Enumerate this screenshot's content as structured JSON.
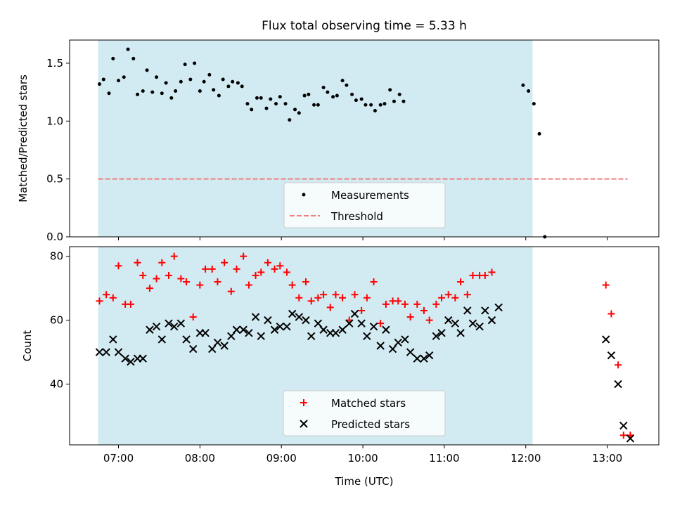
{
  "chart_data": [
    {
      "type": "scatter",
      "title": "Flux total observing time = 5.33 h",
      "ylabel": "Matched/Predicted stars",
      "xlim": [
        "06:24",
        "13:38"
      ],
      "ylim": [
        0,
        1.7
      ],
      "yticks": [
        {
          "value": 0.0,
          "label": "0.0"
        },
        {
          "value": 0.5,
          "label": "0.5"
        },
        {
          "value": 1.0,
          "label": "1.0"
        },
        {
          "value": 1.5,
          "label": "1.5"
        }
      ],
      "shaded_interval": [
        "06:45",
        "12:05"
      ],
      "shaded_color": "#add8e6",
      "threshold": {
        "name": "Threshold",
        "value": 0.5,
        "x_range": [
          "06:45",
          "13:15"
        ],
        "color": "#f08080"
      },
      "series": [
        {
          "name": "Measurements",
          "color": "#000000",
          "points": [
            [
              "06:46",
              1.32
            ],
            [
              "06:49",
              1.36
            ],
            [
              "06:53",
              1.24
            ],
            [
              "06:56",
              1.54
            ],
            [
              "07:00",
              1.35
            ],
            [
              "07:04",
              1.38
            ],
            [
              "07:07",
              1.62
            ],
            [
              "07:11",
              1.54
            ],
            [
              "07:14",
              1.23
            ],
            [
              "07:18",
              1.26
            ],
            [
              "07:21",
              1.44
            ],
            [
              "07:25",
              1.25
            ],
            [
              "07:28",
              1.38
            ],
            [
              "07:32",
              1.24
            ],
            [
              "07:35",
              1.33
            ],
            [
              "07:39",
              1.2
            ],
            [
              "07:42",
              1.26
            ],
            [
              "07:46",
              1.34
            ],
            [
              "07:49",
              1.49
            ],
            [
              "07:53",
              1.36
            ],
            [
              "07:56",
              1.5
            ],
            [
              "08:00",
              1.26
            ],
            [
              "08:03",
              1.34
            ],
            [
              "08:07",
              1.4
            ],
            [
              "08:10",
              1.27
            ],
            [
              "08:14",
              1.22
            ],
            [
              "08:17",
              1.36
            ],
            [
              "08:21",
              1.3
            ],
            [
              "08:24",
              1.34
            ],
            [
              "08:28",
              1.33
            ],
            [
              "08:31",
              1.3
            ],
            [
              "08:35",
              1.15
            ],
            [
              "08:38",
              1.1
            ],
            [
              "08:42",
              1.2
            ],
            [
              "08:45",
              1.2
            ],
            [
              "08:49",
              1.11
            ],
            [
              "08:52",
              1.19
            ],
            [
              "08:56",
              1.15
            ],
            [
              "08:59",
              1.21
            ],
            [
              "09:03",
              1.15
            ],
            [
              "09:06",
              1.01
            ],
            [
              "09:10",
              1.1
            ],
            [
              "09:13",
              1.07
            ],
            [
              "09:17",
              1.22
            ],
            [
              "09:20",
              1.23
            ],
            [
              "09:24",
              1.14
            ],
            [
              "09:27",
              1.14
            ],
            [
              "09:31",
              1.29
            ],
            [
              "09:34",
              1.25
            ],
            [
              "09:38",
              1.21
            ],
            [
              "09:41",
              1.22
            ],
            [
              "09:45",
              1.35
            ],
            [
              "09:48",
              1.31
            ],
            [
              "09:52",
              1.23
            ],
            [
              "09:55",
              1.18
            ],
            [
              "09:59",
              1.19
            ],
            [
              "10:02",
              1.14
            ],
            [
              "10:06",
              1.14
            ],
            [
              "10:09",
              1.09
            ],
            [
              "10:13",
              1.14
            ],
            [
              "10:16",
              1.15
            ],
            [
              "10:20",
              1.27
            ],
            [
              "10:23",
              1.17
            ],
            [
              "10:27",
              1.23
            ],
            [
              "10:30",
              1.17
            ],
            [
              "11:58",
              1.31
            ],
            [
              "12:02",
              1.26
            ],
            [
              "12:06",
              1.15
            ],
            [
              "12:10",
              0.89
            ],
            [
              "12:14",
              0.0
            ]
          ]
        }
      ],
      "legend": {
        "position": "bottom-center",
        "entries": [
          "Measurements",
          "Threshold"
        ]
      }
    },
    {
      "type": "scatter",
      "xlabel": "Time (UTC)",
      "ylabel": "Count",
      "xlim": [
        "06:24",
        "13:38"
      ],
      "ylim": [
        21,
        83
      ],
      "yticks": [
        {
          "value": 40,
          "label": "40"
        },
        {
          "value": 60,
          "label": "60"
        },
        {
          "value": 80,
          "label": "80"
        }
      ],
      "xticks": [
        {
          "value": "07:00",
          "label": "07:00"
        },
        {
          "value": "08:00",
          "label": "08:00"
        },
        {
          "value": "09:00",
          "label": "09:00"
        },
        {
          "value": "10:00",
          "label": "10:00"
        },
        {
          "value": "11:00",
          "label": "11:00"
        },
        {
          "value": "12:00",
          "label": "12:00"
        },
        {
          "value": "13:00",
          "label": "13:00"
        }
      ],
      "shaded_interval": [
        "06:45",
        "12:05"
      ],
      "shaded_color": "#add8e6",
      "series": [
        {
          "name": "Matched stars",
          "marker": "plus",
          "color": "#ff0000",
          "points": [
            [
              "06:46",
              66
            ],
            [
              "06:51",
              68
            ],
            [
              "06:56",
              67
            ],
            [
              "07:00",
              77
            ],
            [
              "07:05",
              65
            ],
            [
              "07:09",
              65
            ],
            [
              "07:14",
              78
            ],
            [
              "07:18",
              74
            ],
            [
              "07:23",
              70
            ],
            [
              "07:28",
              73
            ],
            [
              "07:32",
              78
            ],
            [
              "07:37",
              74
            ],
            [
              "07:41",
              80
            ],
            [
              "07:46",
              73
            ],
            [
              "07:50",
              72
            ],
            [
              "07:55",
              61
            ],
            [
              "08:00",
              71
            ],
            [
              "08:04",
              76
            ],
            [
              "08:09",
              76
            ],
            [
              "08:13",
              72
            ],
            [
              "08:18",
              78
            ],
            [
              "08:23",
              69
            ],
            [
              "08:27",
              76
            ],
            [
              "08:32",
              80
            ],
            [
              "08:36",
              71
            ],
            [
              "08:41",
              74
            ],
            [
              "08:45",
              75
            ],
            [
              "08:50",
              78
            ],
            [
              "08:55",
              76
            ],
            [
              "08:59",
              77
            ],
            [
              "09:04",
              75
            ],
            [
              "09:08",
              71
            ],
            [
              "09:13",
              67
            ],
            [
              "09:18",
              72
            ],
            [
              "09:22",
              66
            ],
            [
              "09:27",
              67
            ],
            [
              "09:31",
              68
            ],
            [
              "09:36",
              64
            ],
            [
              "09:40",
              68
            ],
            [
              "09:45",
              67
            ],
            [
              "09:50",
              60
            ],
            [
              "09:54",
              68
            ],
            [
              "09:59",
              63
            ],
            [
              "10:03",
              67
            ],
            [
              "10:08",
              72
            ],
            [
              "10:13",
              59
            ],
            [
              "10:17",
              65
            ],
            [
              "10:22",
              66
            ],
            [
              "10:26",
              66
            ],
            [
              "10:31",
              65
            ],
            [
              "10:35",
              61
            ],
            [
              "10:40",
              65
            ],
            [
              "10:45",
              63
            ],
            [
              "10:49",
              60
            ],
            [
              "10:54",
              65
            ],
            [
              "10:58",
              67
            ],
            [
              "11:03",
              68
            ],
            [
              "11:08",
              67
            ],
            [
              "11:12",
              72
            ],
            [
              "11:17",
              68
            ],
            [
              "11:21",
              74
            ],
            [
              "11:26",
              74
            ],
            [
              "11:30",
              74
            ],
            [
              "11:35",
              75
            ],
            [
              "12:59",
              71
            ],
            [
              "13:03",
              62
            ],
            [
              "13:08",
              46
            ],
            [
              "13:12",
              24
            ],
            [
              "13:17",
              24
            ]
          ]
        },
        {
          "name": "Predicted stars",
          "marker": "x",
          "color": "#000000",
          "points": [
            [
              "06:46",
              50
            ],
            [
              "06:51",
              50
            ],
            [
              "06:56",
              54
            ],
            [
              "07:00",
              50
            ],
            [
              "07:05",
              48
            ],
            [
              "07:09",
              47
            ],
            [
              "07:14",
              48
            ],
            [
              "07:18",
              48
            ],
            [
              "07:23",
              57
            ],
            [
              "07:28",
              58
            ],
            [
              "07:32",
              54
            ],
            [
              "07:37",
              59
            ],
            [
              "07:41",
              58
            ],
            [
              "07:46",
              59
            ],
            [
              "07:50",
              54
            ],
            [
              "07:55",
              51
            ],
            [
              "08:00",
              56
            ],
            [
              "08:04",
              56
            ],
            [
              "08:09",
              51
            ],
            [
              "08:13",
              53
            ],
            [
              "08:18",
              52
            ],
            [
              "08:23",
              55
            ],
            [
              "08:27",
              57
            ],
            [
              "08:32",
              57
            ],
            [
              "08:36",
              56
            ],
            [
              "08:41",
              61
            ],
            [
              "08:45",
              55
            ],
            [
              "08:50",
              60
            ],
            [
              "08:55",
              57
            ],
            [
              "08:59",
              58
            ],
            [
              "09:04",
              58
            ],
            [
              "09:08",
              62
            ],
            [
              "09:13",
              61
            ],
            [
              "09:18",
              60
            ],
            [
              "09:22",
              55
            ],
            [
              "09:27",
              59
            ],
            [
              "09:31",
              57
            ],
            [
              "09:36",
              56
            ],
            [
              "09:40",
              56
            ],
            [
              "09:45",
              57
            ],
            [
              "09:50",
              59
            ],
            [
              "09:54",
              62
            ],
            [
              "09:59",
              59
            ],
            [
              "10:03",
              55
            ],
            [
              "10:08",
              58
            ],
            [
              "10:13",
              52
            ],
            [
              "10:17",
              57
            ],
            [
              "10:22",
              51
            ],
            [
              "10:26",
              53
            ],
            [
              "10:31",
              54
            ],
            [
              "10:35",
              50
            ],
            [
              "10:40",
              48
            ],
            [
              "10:45",
              48
            ],
            [
              "10:49",
              49
            ],
            [
              "10:54",
              55
            ],
            [
              "10:58",
              56
            ],
            [
              "11:03",
              60
            ],
            [
              "11:08",
              59
            ],
            [
              "11:12",
              56
            ],
            [
              "11:17",
              63
            ],
            [
              "11:21",
              59
            ],
            [
              "11:26",
              58
            ],
            [
              "11:30",
              63
            ],
            [
              "11:35",
              60
            ],
            [
              "11:40",
              64
            ],
            [
              "12:59",
              54
            ],
            [
              "13:03",
              49
            ],
            [
              "13:08",
              40
            ],
            [
              "13:12",
              27
            ],
            [
              "13:17",
              23
            ]
          ]
        }
      ],
      "legend": {
        "position": "bottom-center",
        "entries": [
          "Matched stars",
          "Predicted stars"
        ]
      }
    }
  ]
}
